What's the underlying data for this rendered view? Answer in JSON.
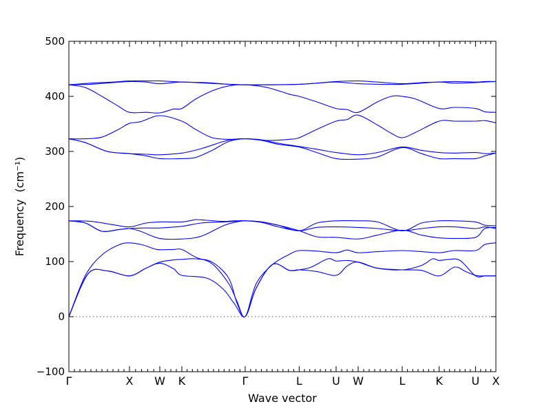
{
  "chart_data": {
    "type": "line",
    "title": "",
    "xlabel": "Wave vector",
    "ylabel": "Frequency",
    "ylabel_unit": "(cm⁻¹)",
    "ylim": [
      -100,
      500
    ],
    "yticks": [
      -100,
      0,
      100,
      200,
      300,
      400,
      500
    ],
    "xlim": [
      0,
      7.75
    ],
    "high_symmetry_points": [
      {
        "label": "Γ",
        "x": 0.0
      },
      {
        "label": "X",
        "x": 1.1
      },
      {
        "label": "W",
        "x": 1.65
      },
      {
        "label": "K",
        "x": 2.05
      },
      {
        "label": "Γ",
        "x": 3.2
      },
      {
        "label": "L",
        "x": 4.18
      },
      {
        "label": "U",
        "x": 4.85
      },
      {
        "label": "W",
        "x": 5.25
      },
      {
        "label": "L",
        "x": 6.05
      },
      {
        "label": "K",
        "x": 6.72
      },
      {
        "label": "U",
        "x": 7.38
      },
      {
        "label": "X",
        "x": 7.75
      }
    ],
    "grid": false,
    "zero_line": true,
    "line_color": "#0000ff",
    "series": [
      {
        "x": [
          0,
          0.35,
          0.7,
          1.1,
          1.4,
          1.65,
          1.9,
          2.05,
          2.5,
          2.8,
          3.0,
          3.2,
          3.4,
          3.7,
          4.0,
          4.18,
          4.5,
          4.85,
          5.05,
          5.25,
          5.6,
          6.05,
          6.4,
          6.72,
          7.0,
          7.2,
          7.38,
          7.55,
          7.75
        ],
        "values": [
          0,
          78,
          83,
          74,
          88,
          97,
          87,
          75,
          70,
          50,
          24,
          0,
          52,
          95,
          84,
          85,
          82,
          75,
          92,
          99,
          88,
          85,
          84,
          74,
          90,
          82,
          75,
          74,
          74
        ]
      },
      {
        "x": [
          0,
          0.35,
          0.7,
          1.1,
          1.4,
          1.65,
          1.9,
          2.05,
          2.3,
          2.6,
          2.9,
          3.05,
          3.2,
          3.4,
          3.7,
          4.0,
          4.18,
          4.4,
          4.7,
          4.85,
          5.05,
          5.25,
          5.6,
          6.05,
          6.4,
          6.6,
          6.72,
          6.9,
          7.1,
          7.38,
          7.55,
          7.75
        ],
        "values": [
          0,
          78,
          83,
          74,
          88,
          99,
          103,
          104,
          105,
          99,
          70,
          25,
          0,
          52,
          95,
          84,
          85,
          90,
          105,
          101,
          102,
          99,
          88,
          85,
          93,
          105,
          102,
          104,
          102,
          74,
          74,
          74
        ]
      },
      {
        "x": [
          0,
          0.3,
          0.6,
          0.9,
          1.1,
          1.35,
          1.6,
          1.9,
          2.05,
          2.3,
          2.6,
          2.9,
          3.05,
          3.2,
          3.4,
          3.7,
          4.0,
          4.18,
          4.5,
          4.85,
          5.05,
          5.25,
          5.6,
          6.05,
          6.4,
          6.72,
          7.0,
          7.38,
          7.55,
          7.75
        ],
        "values": [
          0,
          75,
          112,
          130,
          134,
          130,
          122,
          122,
          122,
          108,
          96,
          60,
          28,
          0,
          60,
          95,
          113,
          120,
          119,
          116,
          121,
          116,
          118,
          120,
          118,
          116,
          120,
          120,
          131,
          134
        ]
      },
      {
        "x": [
          0,
          0.3,
          0.6,
          0.9,
          1.1,
          1.3,
          1.65,
          2.05,
          2.4,
          2.8,
          3.0,
          3.2,
          3.5,
          3.8,
          4.18,
          4.5,
          4.85,
          5.25,
          5.6,
          6.05,
          6.4,
          6.72,
          7.0,
          7.38,
          7.55,
          7.75
        ],
        "values": [
          174,
          170,
          155,
          158,
          160,
          155,
          142,
          141,
          146,
          165,
          171,
          174,
          172,
          166,
          156,
          145,
          144,
          141,
          148,
          157,
          148,
          143,
          142,
          144,
          160,
          162
        ]
      },
      {
        "x": [
          0,
          0.3,
          0.6,
          0.9,
          1.1,
          1.4,
          1.65,
          2.05,
          2.4,
          2.8,
          3.0,
          3.2,
          3.5,
          3.8,
          4.18,
          4.5,
          4.85,
          5.25,
          5.6,
          6.05,
          6.4,
          6.72,
          7.0,
          7.38,
          7.55,
          7.75
        ],
        "values": [
          174,
          170,
          155,
          158,
          160,
          161,
          161,
          164,
          170,
          172,
          173,
          174,
          171,
          163,
          156,
          162,
          163,
          162,
          160,
          156,
          160,
          163,
          163,
          160,
          163,
          160
        ]
      },
      {
        "x": [
          0,
          0.4,
          0.8,
          1.1,
          1.4,
          1.65,
          2.05,
          2.3,
          2.5,
          2.8,
          3.0,
          3.2,
          3.5,
          3.8,
          4.18,
          4.5,
          4.85,
          5.25,
          5.6,
          6.05,
          6.4,
          6.72,
          7.0,
          7.38,
          7.55,
          7.75
        ],
        "values": [
          174,
          173,
          167,
          163,
          170,
          172,
          172,
          176,
          175,
          173,
          174,
          174,
          172,
          166,
          156,
          170,
          174,
          174,
          172,
          156,
          170,
          174,
          174,
          172,
          166,
          165
        ]
      },
      {
        "x": [
          0,
          0.3,
          0.7,
          1.1,
          1.4,
          1.65,
          2.05,
          2.3,
          2.6,
          2.9,
          3.2,
          3.5,
          3.8,
          4.18,
          4.5,
          4.85,
          5.25,
          5.6,
          6.05,
          6.4,
          6.72,
          7.0,
          7.38,
          7.55,
          7.75
        ],
        "values": [
          323,
          316,
          300,
          296,
          292,
          287,
          287,
          289,
          302,
          318,
          323,
          320,
          313,
          308,
          298,
          287,
          286,
          290,
          307,
          296,
          287,
          287,
          287,
          292,
          297
        ]
      },
      {
        "x": [
          0,
          0.3,
          0.7,
          1.1,
          1.4,
          1.65,
          2.05,
          2.4,
          2.8,
          3.0,
          3.2,
          3.5,
          3.8,
          4.18,
          4.5,
          4.85,
          5.25,
          5.6,
          6.05,
          6.4,
          6.72,
          7.0,
          7.38,
          7.55,
          7.75
        ],
        "values": [
          323,
          316,
          300,
          296,
          295,
          294,
          297,
          305,
          318,
          322,
          323,
          321,
          315,
          309,
          304,
          298,
          294,
          298,
          308,
          302,
          298,
          297,
          298,
          296,
          297
        ]
      },
      {
        "x": [
          0,
          0.3,
          0.6,
          0.9,
          1.1,
          1.3,
          1.65,
          2.05,
          2.3,
          2.6,
          2.9,
          3.2,
          3.6,
          4.0,
          4.18,
          4.5,
          4.85,
          5.05,
          5.25,
          5.6,
          5.85,
          6.05,
          6.3,
          6.72,
          7.0,
          7.38,
          7.55,
          7.75
        ],
        "values": [
          323,
          323,
          326,
          340,
          351,
          354,
          365,
          355,
          340,
          325,
          322,
          323,
          320,
          322,
          325,
          340,
          355,
          358,
          366,
          348,
          333,
          325,
          335,
          355,
          355,
          355,
          356,
          352
        ]
      },
      {
        "x": [
          0,
          0.3,
          0.6,
          0.9,
          1.1,
          1.4,
          1.65,
          1.9,
          2.05,
          2.3,
          2.6,
          2.9,
          3.2,
          3.6,
          4.0,
          4.18,
          4.5,
          4.85,
          5.05,
          5.25,
          5.6,
          5.85,
          6.05,
          6.3,
          6.72,
          7.0,
          7.38,
          7.55,
          7.75
        ],
        "values": [
          421,
          416,
          400,
          382,
          371,
          371,
          370,
          377,
          378,
          395,
          410,
          419,
          421,
          416,
          404,
          400,
          390,
          378,
          376,
          371,
          390,
          400,
          400,
          395,
          378,
          380,
          378,
          372,
          371
        ]
      },
      {
        "x": [
          0,
          0.4,
          0.8,
          1.1,
          1.4,
          1.65,
          2.05,
          2.5,
          2.9,
          3.2,
          3.6,
          4.18,
          4.5,
          4.85,
          5.25,
          5.6,
          6.05,
          6.4,
          6.72,
          7.0,
          7.38,
          7.55,
          7.75
        ],
        "values": [
          421,
          422,
          425,
          427,
          426,
          423,
          426,
          424,
          422,
          421,
          421,
          422,
          424,
          426,
          423,
          422,
          422,
          424,
          426,
          424,
          425,
          426,
          427
        ]
      },
      {
        "x": [
          0,
          0.4,
          0.8,
          1.1,
          1.4,
          1.65,
          2.05,
          2.5,
          2.9,
          3.2,
          3.6,
          4.18,
          4.5,
          4.85,
          5.25,
          5.6,
          6.05,
          6.4,
          6.72,
          7.0,
          7.38,
          7.55,
          7.75
        ],
        "values": [
          421,
          424,
          426,
          428,
          428,
          428,
          426,
          425,
          422,
          421,
          421,
          422,
          424,
          427,
          428,
          426,
          423,
          425,
          426,
          427,
          426,
          427,
          427
        ]
      }
    ]
  }
}
